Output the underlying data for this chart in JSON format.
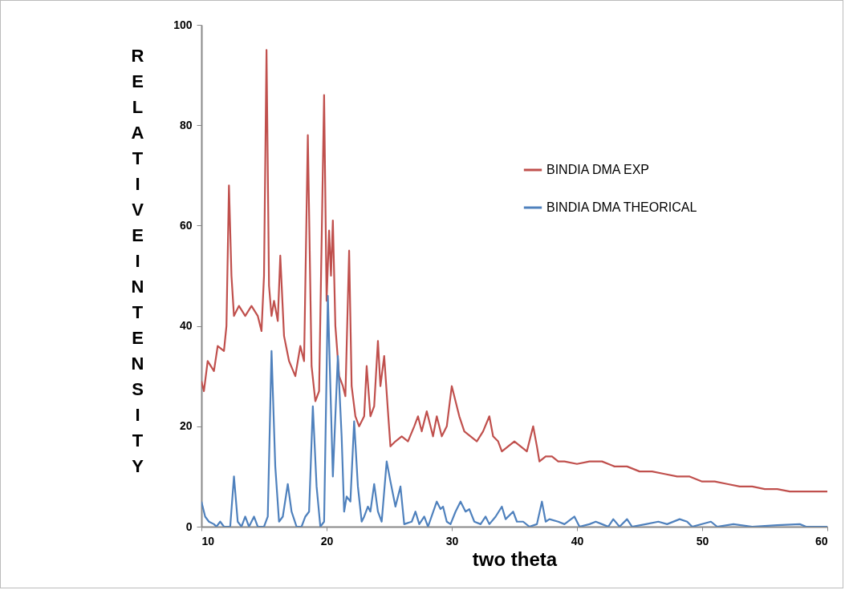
{
  "chart_data": {
    "type": "line",
    "xlabel": "two theta",
    "ylabel": "RELATIVE INTENSITY",
    "xlim": [
      10,
      60
    ],
    "xticks": [
      10,
      20,
      30,
      40,
      50,
      60
    ],
    "ylim": [
      0,
      100
    ],
    "yticks": [
      0,
      20,
      40,
      60,
      80,
      100
    ],
    "grid": false,
    "legend": "top right",
    "series": [
      {
        "name": "BINDIA DMA EXP",
        "color": "#c0504d",
        "x": [
          10,
          10.2,
          10.5,
          11,
          11.3,
          11.8,
          12,
          12.2,
          12.4,
          12.6,
          13,
          13.5,
          14,
          14.5,
          14.8,
          15,
          15.2,
          15.4,
          15.6,
          15.8,
          16.1,
          16.3,
          16.6,
          17,
          17.5,
          17.9,
          18.2,
          18.5,
          18.8,
          19.1,
          19.4,
          19.8,
          20,
          20.2,
          20.35,
          20.5,
          20.7,
          21,
          21.3,
          21.5,
          21.8,
          22,
          22.3,
          22.6,
          23,
          23.2,
          23.5,
          23.8,
          24.1,
          24.3,
          24.6,
          24.9,
          25.1,
          25.5,
          26,
          26.5,
          27,
          27.3,
          27.6,
          28,
          28.5,
          28.8,
          29.2,
          29.6,
          30,
          30.3,
          30.6,
          31,
          31.5,
          32,
          32.5,
          33,
          33.3,
          33.7,
          34,
          34.5,
          35,
          35.5,
          36,
          36.5,
          36.8,
          37,
          37.5,
          38,
          38.5,
          39,
          40,
          41,
          42,
          43,
          44,
          45,
          46,
          47,
          48,
          49,
          50,
          51,
          52,
          53,
          54,
          55,
          56,
          57,
          58,
          59,
          60
        ],
        "values": [
          29,
          27,
          33,
          31,
          36,
          35,
          40,
          68,
          50,
          42,
          44,
          42,
          44,
          42,
          39,
          50,
          95,
          48,
          42,
          45,
          41,
          54,
          38,
          33,
          30,
          36,
          33,
          78,
          32,
          25,
          27,
          86,
          45,
          59,
          50,
          61,
          40,
          30,
          28,
          26,
          55,
          28,
          22,
          20,
          22,
          32,
          22,
          24,
          37,
          28,
          34,
          23,
          16,
          17,
          18,
          17,
          20,
          22,
          19,
          23,
          18,
          22,
          18,
          20,
          28,
          25,
          22,
          19,
          18,
          17,
          19,
          22,
          18,
          17,
          15,
          16,
          17,
          16,
          15,
          20,
          16,
          13,
          14,
          14,
          13,
          13,
          12.5,
          13,
          13,
          12,
          12,
          11,
          11,
          10.5,
          10,
          10,
          9,
          9,
          8.5,
          8,
          8,
          7.5,
          7.5,
          7,
          7,
          7,
          7
        ]
      },
      {
        "name": "BINDIA DMA THEORICAL",
        "color": "#4f81bd",
        "x": [
          10,
          10.3,
          10.6,
          11,
          11.2,
          11.5,
          11.8,
          12.3,
          12.6,
          12.9,
          13.2,
          13.5,
          13.8,
          14.2,
          14.5,
          15,
          15.3,
          15.6,
          15.9,
          16.2,
          16.5,
          16.9,
          17.2,
          17.6,
          18,
          18.3,
          18.6,
          18.9,
          19.2,
          19.5,
          19.8,
          20.1,
          20.5,
          20.9,
          21.2,
          21.4,
          21.6,
          21.9,
          22.2,
          22.5,
          22.8,
          23,
          23.3,
          23.5,
          23.8,
          24.1,
          24.4,
          24.8,
          25.1,
          25.5,
          25.9,
          26.2,
          26.8,
          27.1,
          27.4,
          27.8,
          28.1,
          28.8,
          29.1,
          29.3,
          29.6,
          29.9,
          30.3,
          30.7,
          31.1,
          31.4,
          31.8,
          32.3,
          32.7,
          33,
          33.5,
          34,
          34.3,
          34.9,
          35.2,
          35.7,
          36.2,
          36.8,
          37.2,
          37.5,
          37.8,
          38.5,
          39,
          39.8,
          40.2,
          41,
          41.5,
          42,
          42.5,
          42.9,
          43.4,
          44,
          44.4,
          45.5,
          46.5,
          47.2,
          48.2,
          48.8,
          49.2,
          50.7,
          51.2,
          52.5,
          54,
          56,
          57.8,
          58.3,
          60
        ],
        "values": [
          5,
          2,
          1,
          0.5,
          0,
          1,
          0,
          0,
          10,
          1,
          0,
          2,
          0,
          2,
          0,
          0,
          2,
          35,
          12,
          1,
          2,
          8.5,
          3,
          0,
          0,
          2,
          3,
          24,
          8,
          0,
          1,
          46,
          10,
          34,
          18,
          3,
          6,
          5,
          21,
          8,
          1,
          2,
          4,
          3,
          8.5,
          3,
          1,
          13,
          9,
          4,
          8,
          0.5,
          1,
          3,
          0.5,
          2,
          0,
          5,
          3.5,
          4,
          1,
          0.5,
          3,
          5,
          3,
          3.5,
          1,
          0.5,
          2,
          0.5,
          2,
          4,
          1.5,
          3,
          1,
          1,
          0,
          0.5,
          5,
          1,
          1.5,
          1,
          0.5,
          2,
          0,
          0.5,
          1,
          0.5,
          0,
          1.5,
          0,
          1.5,
          0,
          0.5,
          1,
          0.5,
          1.5,
          1,
          0,
          1,
          0,
          0.5,
          0,
          0.3,
          0.5,
          0,
          0
        ]
      }
    ]
  }
}
